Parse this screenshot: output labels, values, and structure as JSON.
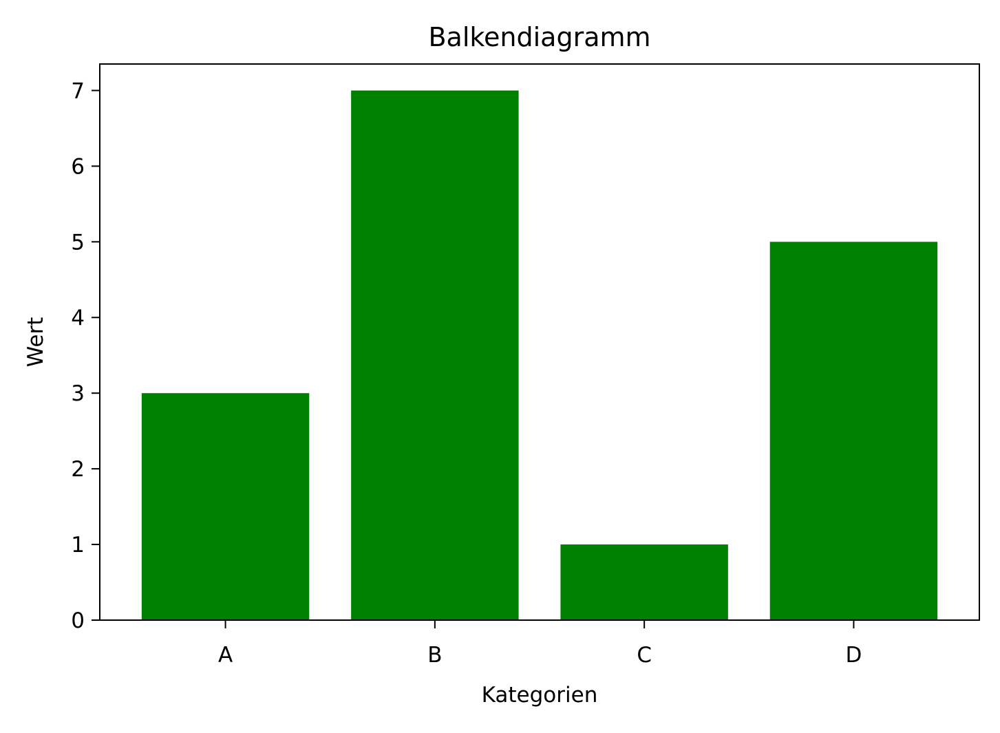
{
  "chart_data": {
    "type": "bar",
    "title": "Balkendiagramm",
    "xlabel": "Kategorien",
    "ylabel": "Wert",
    "categories": [
      "A",
      "B",
      "C",
      "D"
    ],
    "values": [
      3,
      7,
      1,
      5
    ],
    "ylim": [
      0,
      7.35
    ],
    "yticks": [
      0,
      1,
      2,
      3,
      4,
      5,
      6,
      7
    ],
    "bar_color": "#008000",
    "grid": false,
    "legend": "none"
  }
}
